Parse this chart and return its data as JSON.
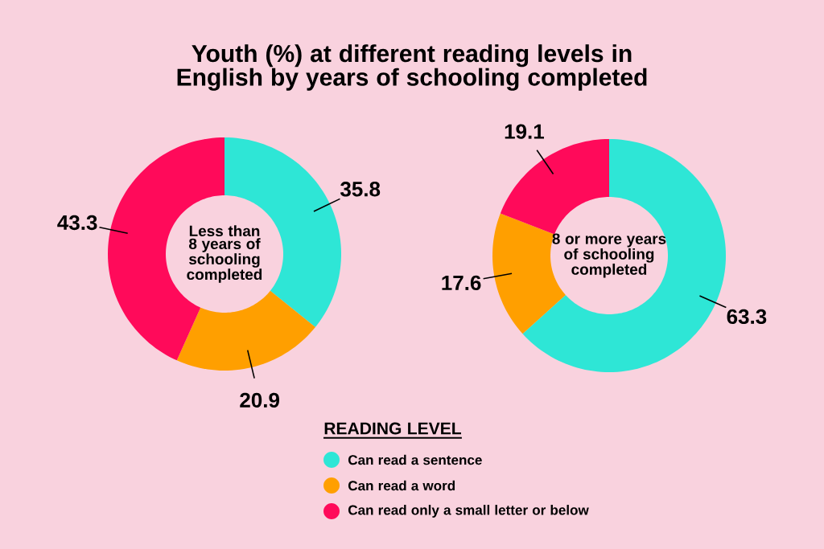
{
  "chart_data": [
    {
      "type": "donut",
      "title": "Youth (%) at different reading levels in English by years of schooling completed",
      "annotations": [
        "Less than 8 years of schooling completed"
      ],
      "categories": [
        "Can read a sentence",
        "Can read a word",
        "Can read only a small letter or below"
      ],
      "values": [
        35.8,
        20.9,
        43.3
      ],
      "colors": [
        "#2ee6d6",
        "#ff9f00",
        "#ff0a5a"
      ],
      "data_labels": true,
      "legend": "bottom",
      "legend_title": "READING LEVEL"
    },
    {
      "type": "donut",
      "annotations": [
        "8 or more years of schooling completed"
      ],
      "categories": [
        null,
        null,
        null
      ],
      "values": [
        63.3,
        17.6,
        19.1
      ],
      "colors": [
        "#2ee6d6",
        "#ff9f00",
        "#ff0a5a"
      ],
      "data_labels": true,
      "legend": false
    }
  ]
}
